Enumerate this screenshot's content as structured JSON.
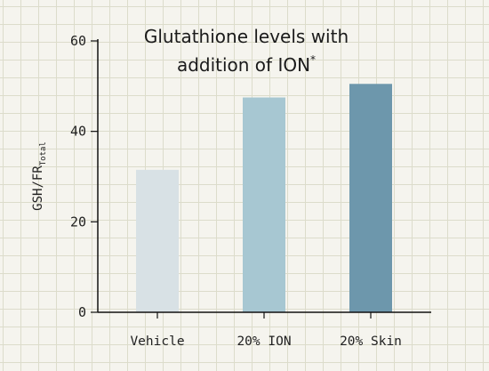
{
  "chart_data": {
    "type": "bar",
    "title_line1": "Glutathione levels with",
    "title_line2": "addition of ION",
    "title_mark": "*",
    "ylabel": "GSH/FR",
    "ylabel_subscript": "Total",
    "xlabel": "",
    "categories": [
      "Vehicle",
      "20% ION",
      "20% Skin"
    ],
    "values": [
      31.5,
      47.5,
      50.5
    ],
    "colors": [
      "#d8e1e5",
      "#a7c7d2",
      "#6d97ac"
    ],
    "ylim": [
      0,
      60
    ],
    "yticks": [
      "0",
      "20",
      "40",
      "60"
    ],
    "grid": true
  }
}
